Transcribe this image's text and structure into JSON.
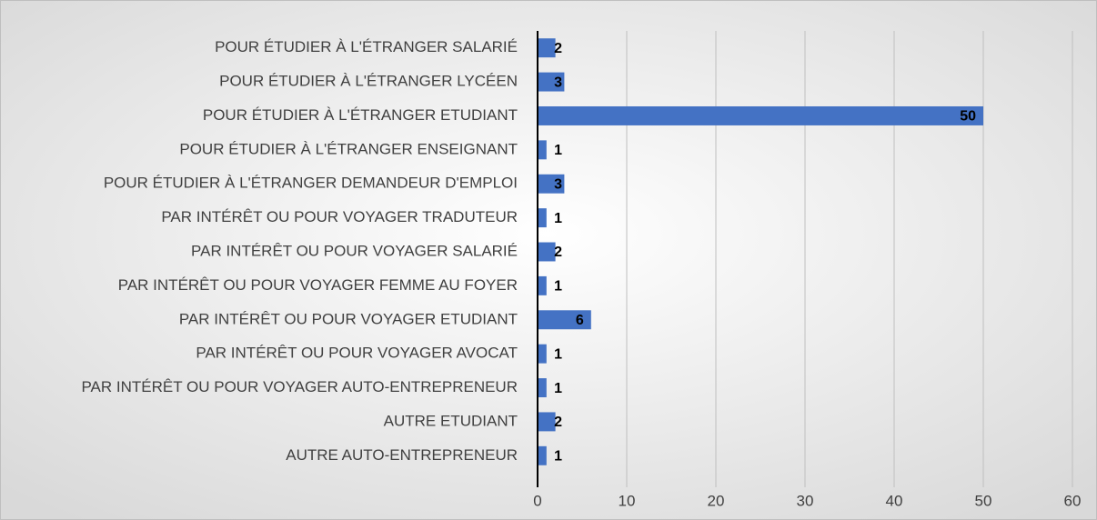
{
  "chart_data": {
    "type": "bar",
    "orientation": "horizontal",
    "categories": [
      "POUR ÉTUDIER À L'ÉTRANGER SALARIÉ",
      "POUR ÉTUDIER À L'ÉTRANGER LYCÉEN",
      "POUR ÉTUDIER À L'ÉTRANGER ETUDIANT",
      "POUR ÉTUDIER À L'ÉTRANGER ENSEIGNANT",
      "POUR ÉTUDIER À L'ÉTRANGER DEMANDEUR D'EMPLOI",
      "PAR INTÉRÊT OU POUR VOYAGER TRADUTEUR",
      "PAR INTÉRÊT OU POUR VOYAGER SALARIÉ",
      "PAR INTÉRÊT OU POUR VOYAGER FEMME AU FOYER",
      "PAR INTÉRÊT OU POUR VOYAGER ETUDIANT",
      "PAR INTÉRÊT OU POUR VOYAGER AVOCAT",
      "PAR INTÉRÊT OU POUR VOYAGER AUTO-ENTREPRENEUR",
      "AUTRE ETUDIANT",
      "AUTRE AUTO-ENTREPRENEUR"
    ],
    "values": [
      2,
      3,
      50,
      1,
      3,
      1,
      2,
      1,
      6,
      1,
      1,
      2,
      1
    ],
    "color": "#4472c4",
    "xlim": [
      0,
      60
    ],
    "xticks": [
      0,
      10,
      20,
      30,
      40,
      50,
      60
    ],
    "grid": true
  }
}
